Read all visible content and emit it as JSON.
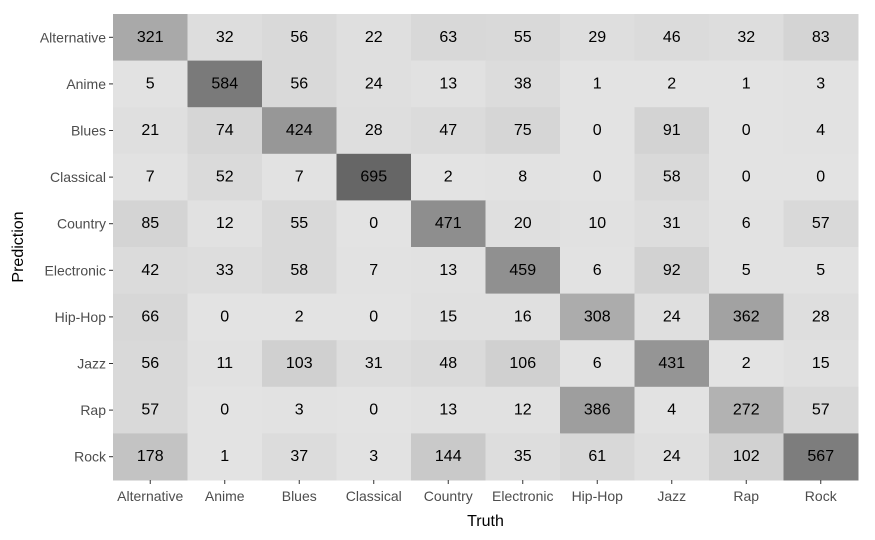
{
  "chart_data": {
    "type": "heatmap",
    "xlabel": "Truth",
    "ylabel": "Prediction",
    "x_categories": [
      "Alternative",
      "Anime",
      "Blues",
      "Classical",
      "Country",
      "Electronic",
      "Hip-Hop",
      "Jazz",
      "Rap",
      "Rock"
    ],
    "y_categories": [
      "Alternative",
      "Anime",
      "Blues",
      "Classical",
      "Country",
      "Electronic",
      "Hip-Hop",
      "Jazz",
      "Rap",
      "Rock"
    ],
    "values": [
      [
        321,
        32,
        56,
        22,
        63,
        55,
        29,
        46,
        32,
        83
      ],
      [
        5,
        584,
        56,
        24,
        13,
        38,
        1,
        2,
        1,
        3
      ],
      [
        21,
        74,
        424,
        28,
        47,
        75,
        0,
        91,
        0,
        4
      ],
      [
        7,
        52,
        7,
        695,
        2,
        8,
        0,
        58,
        0,
        0
      ],
      [
        85,
        12,
        55,
        0,
        471,
        20,
        10,
        31,
        6,
        57
      ],
      [
        42,
        33,
        58,
        7,
        13,
        459,
        6,
        92,
        5,
        5
      ],
      [
        66,
        0,
        2,
        0,
        15,
        16,
        308,
        24,
        362,
        28
      ],
      [
        56,
        11,
        103,
        31,
        48,
        106,
        6,
        431,
        2,
        15
      ],
      [
        57,
        0,
        3,
        0,
        13,
        12,
        386,
        4,
        272,
        57
      ],
      [
        178,
        1,
        37,
        3,
        144,
        35,
        61,
        24,
        102,
        567
      ]
    ],
    "color_low": "#e3e3e3",
    "color_high": "#666666",
    "grid": false,
    "legend": "none"
  }
}
